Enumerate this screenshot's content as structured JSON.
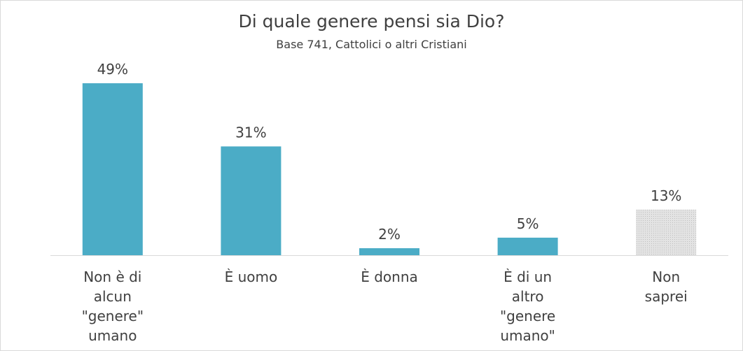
{
  "chart_data": {
    "type": "bar",
    "title": "Di quale genere pensi sia Dio?",
    "subtitle": "Base 741, Cattolici o altri Cristiani",
    "categories": [
      "Non è di alcun \"genere\" umano",
      "È uomo",
      "È donna",
      "È di un altro \"genere umano\"",
      "Non saprei"
    ],
    "category_lines": [
      [
        "Non è di",
        "alcun",
        "\"genere\"",
        "umano"
      ],
      [
        "È uomo"
      ],
      [
        "È donna"
      ],
      [
        "È di un",
        "altro",
        "\"genere",
        "umano\""
      ],
      [
        "Non",
        "saprei"
      ]
    ],
    "values": [
      49,
      31,
      2,
      5,
      13
    ],
    "data_labels": [
      "49%",
      "31%",
      "2%",
      "5%",
      "13%"
    ],
    "ylim": [
      0,
      52
    ],
    "grid": false,
    "colors": [
      "#4bacc6",
      "#4bacc6",
      "#4bacc6",
      "#4bacc6",
      "#d9d9d9"
    ],
    "axis_color": "#d9d9d9"
  }
}
